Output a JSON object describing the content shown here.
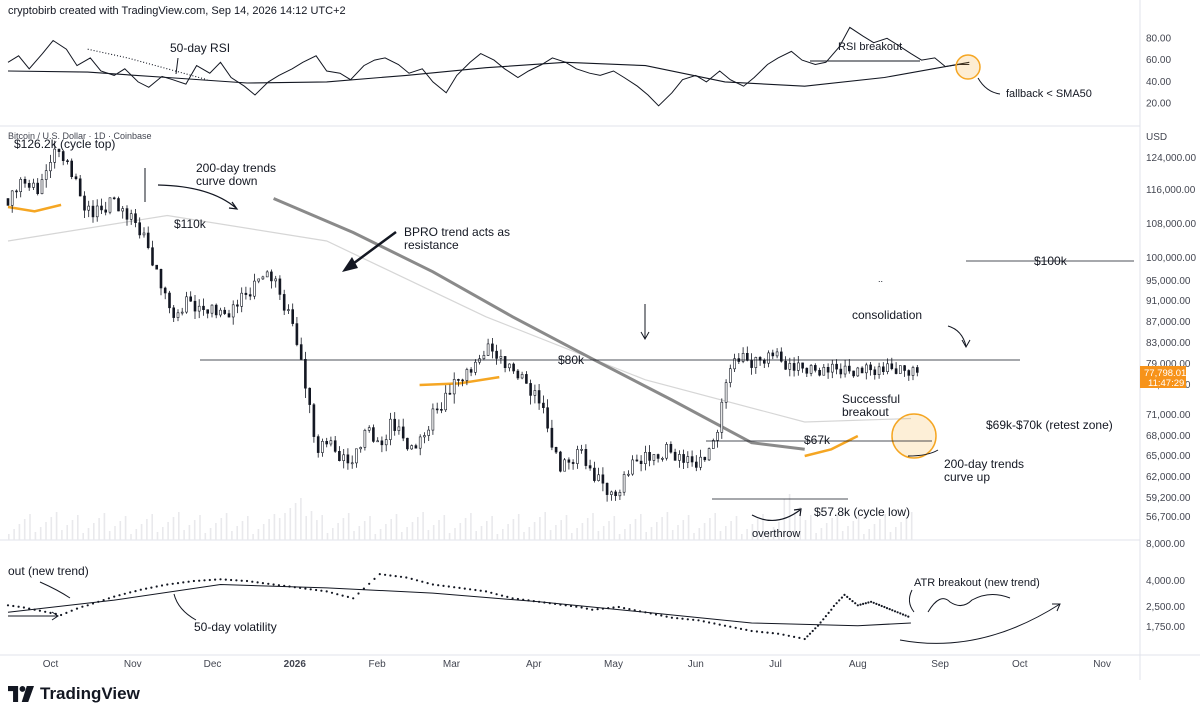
{
  "header": {
    "credit": "cryptobirb created with TradingView.com, Sep 14, 2026 14:12 UTC+2",
    "symbol": "Bitcoin / U.S. Dollar · 1D · Coinbase",
    "currency": "USD"
  },
  "brand": {
    "name": "TradingView",
    "logo_icon": "tradingview-logo-icon"
  },
  "colors": {
    "candle": "#131722",
    "orange": "#f5a623",
    "sma200": "#8a8a8a",
    "sma_light": "#d6d6d6",
    "price_badge": "#f7931a",
    "grid_line": "#e0e3eb"
  },
  "chart_data": [
    {
      "type": "line",
      "name": "rsi-panel",
      "ylim": [
        5,
        95
      ],
      "yticks": [
        "80.00",
        "60.00",
        "40.00",
        "20.00"
      ],
      "ytick_values": [
        80,
        60,
        40,
        20
      ],
      "series": [
        {
          "role": "rsi",
          "x": [
            0,
            4,
            8,
            13,
            17,
            22,
            26,
            31,
            35,
            40,
            44,
            49,
            53,
            58,
            62,
            67,
            71,
            76,
            80,
            84,
            89,
            93,
            98,
            102,
            107,
            111,
            116,
            120,
            125,
            129,
            134,
            138,
            142,
            147,
            151,
            156,
            160,
            165,
            169,
            174,
            178,
            183,
            187,
            192,
            196,
            201,
            205,
            210,
            214,
            219,
            223,
            228,
            232,
            237,
            241,
            245,
            250,
            254,
            259,
            263,
            268,
            272,
            277,
            281,
            286,
            290,
            295,
            299,
            304,
            308,
            313,
            317,
            322,
            326,
            331,
            335,
            340,
            344,
            349,
            353,
            358,
            362
          ],
          "values": [
            58,
            64,
            52,
            66,
            78,
            70,
            55,
            62,
            50,
            46,
            52,
            40,
            35,
            45,
            42,
            38,
            55,
            48,
            58,
            44,
            36,
            28,
            40,
            46,
            52,
            58,
            64,
            50,
            48,
            42,
            55,
            60,
            62,
            56,
            48,
            52,
            40,
            30,
            46,
            58,
            66,
            60,
            52,
            44,
            50,
            56,
            62,
            58,
            52,
            48,
            46,
            50,
            44,
            36,
            28,
            18,
            30,
            42,
            46,
            40,
            50,
            42,
            36,
            44,
            56,
            62,
            68,
            60,
            56,
            58,
            72,
            90,
            82,
            76,
            80,
            74,
            66,
            60,
            62,
            54,
            56,
            56
          ]
        },
        {
          "role": "sma50",
          "x": [
            0,
            30,
            60,
            90,
            120,
            150,
            180,
            210,
            240,
            270,
            300,
            330,
            362
          ],
          "values": [
            50,
            49,
            44,
            39,
            40,
            46,
            53,
            58,
            55,
            40,
            36,
            44,
            58
          ]
        },
        {
          "role": "sma-dotted",
          "x": [
            30,
            45,
            60,
            75
          ],
          "values": [
            70,
            62,
            52,
            42
          ]
        }
      ],
      "annotations": [
        "50-day RSI",
        "RSI breakout",
        "fallback < SMA50"
      ]
    },
    {
      "type": "candlestick",
      "name": "price-panel",
      "ylim": [
        54000,
        132000
      ],
      "yticks": [
        "124,000.00",
        "116,000.00",
        "108,000.00",
        "100,000.00",
        "95,000.00",
        "91,000.00",
        "87,000.00",
        "83,000.00",
        "79,000.00",
        "75,000.00",
        "71,000.00",
        "68,000.00",
        "65,000.00",
        "62,000.00",
        "59,200.00",
        "56,700.00"
      ],
      "ytick_values": [
        124000,
        116000,
        108000,
        100000,
        95000,
        91000,
        87000,
        83000,
        79000,
        75000,
        71000,
        68000,
        65000,
        62000,
        59200,
        56700
      ],
      "x_start": "2025-09-15",
      "x_end": "2026-11-14",
      "xticks": [
        "Oct",
        "Nov",
        "Dec",
        "2026",
        "Feb",
        "Mar",
        "Apr",
        "May",
        "Jun",
        "Jul",
        "Aug",
        "Sep",
        "Oct",
        "Nov"
      ],
      "xtick_dates": [
        "2025-10-01",
        "2025-11-01",
        "2025-12-01",
        "2026-01-01",
        "2026-02-01",
        "2026-03-01",
        "2026-04-01",
        "2026-05-01",
        "2026-06-01",
        "2026-07-01",
        "2026-08-01",
        "2026-09-01",
        "2026-10-01",
        "2026-11-01"
      ],
      "close_path": {
        "x": [
          0,
          4,
          8,
          12,
          16,
          20,
          24,
          28,
          32,
          36,
          40,
          44,
          48,
          52,
          56,
          60,
          64,
          68,
          72,
          76,
          80,
          84,
          88,
          92,
          96,
          100,
          104,
          108,
          112,
          116,
          120,
          124,
          128,
          132,
          136,
          140,
          144,
          148,
          152,
          156,
          160,
          164,
          168,
          172,
          176,
          180,
          184,
          188,
          192,
          196,
          200,
          204,
          208,
          212,
          216,
          220,
          224,
          228,
          232,
          236,
          240,
          244,
          248,
          252,
          256,
          260,
          264,
          268,
          272,
          276,
          280,
          284,
          288,
          292,
          296,
          300,
          304,
          308,
          312,
          316,
          320,
          324,
          328,
          332,
          336,
          340,
          344,
          348,
          352,
          356,
          360,
          364
        ],
        "values": [
          114000,
          117000,
          118000,
          115000,
          124000,
          126200,
          120000,
          113000,
          110000,
          111000,
          114000,
          110000,
          108000,
          104000,
          97000,
          90000,
          88000,
          91000,
          89000,
          90000,
          88000,
          89000,
          91000,
          93000,
          97000,
          95000,
          90000,
          86000,
          75000,
          66000,
          67000,
          65000,
          64000,
          66000,
          69000,
          66000,
          70000,
          68000,
          66000,
          67000,
          71000,
          73000,
          75000,
          77000,
          78000,
          82000,
          81000,
          78000,
          77000,
          75000,
          73000,
          68000,
          63000,
          64000,
          66000,
          62000,
          61000,
          59000,
          62000,
          64000,
          65000,
          64000,
          66000,
          65000,
          64000,
          64000,
          65000,
          70000,
          79000,
          80000,
          79000,
          80000,
          81000,
          79000,
          78000,
          77798,
          77798,
          77798,
          77798,
          77798,
          77798,
          77798,
          77798,
          77798,
          77798,
          77798,
          77798,
          77798,
          77798,
          77798,
          77798,
          77798
        ]
      },
      "sma200": {
        "x": [
          100,
          130,
          160,
          190,
          220,
          250,
          280,
          300
        ],
        "values": [
          114000,
          106000,
          97000,
          88000,
          80000,
          73000,
          67000,
          66000
        ]
      },
      "sma_light": {
        "x": [
          0,
          60,
          120,
          180,
          240,
          300,
          340
        ],
        "values": [
          104000,
          110000,
          104000,
          88000,
          76000,
          70000,
          70500
        ]
      },
      "orange_segments": [
        {
          "x": [
            0,
            10,
            20
          ],
          "values": [
            112000,
            111000,
            112500
          ]
        },
        {
          "x": [
            155,
            170,
            185
          ],
          "values": [
            75000,
            75300,
            76500
          ]
        },
        {
          "x": [
            300,
            310,
            320
          ],
          "values": [
            65000,
            66000,
            68000
          ]
        }
      ],
      "annotations": [
        "$126.2k (cycle top)",
        "200-day trends curve down",
        "$110k",
        "BPRO trend acts as resistance",
        "$100k",
        "$80k",
        "consolidation",
        "Successful breakout",
        "$67k",
        "$69k-$70k (retest zone)",
        "200-day trends curve up",
        "$57.8k (cycle low)",
        "overthrow"
      ],
      "last_price": "77,798.01",
      "last_time": "11:47:29",
      "volume_scale_label": "8,000.00"
    },
    {
      "type": "scatter",
      "name": "volatility-panel",
      "ylim": [
        1300,
        5000
      ],
      "yticks": [
        "4,000.00",
        "2,500.00",
        "1,750.00"
      ],
      "ytick_values": [
        4000,
        2500,
        1750
      ],
      "series": [
        {
          "role": "volatility-dots",
          "x": [
            0,
            10,
            20,
            30,
            40,
            50,
            60,
            70,
            80,
            90,
            100,
            110,
            120,
            130,
            140,
            150,
            160,
            170,
            180,
            190,
            200,
            210,
            220,
            230,
            240,
            250,
            260,
            270,
            280,
            290,
            300,
            305,
            310,
            315,
            320,
            325,
            330,
            335,
            340
          ],
          "values": [
            2600,
            2400,
            2200,
            2600,
            3100,
            3500,
            3800,
            4000,
            4100,
            4000,
            3800,
            3600,
            3400,
            3000,
            4400,
            4200,
            3800,
            3600,
            3400,
            3000,
            2800,
            2600,
            2400,
            2500,
            2300,
            2100,
            2000,
            1800,
            1600,
            1500,
            1300,
            1800,
            2400,
            3200,
            2600,
            2800,
            2500,
            2300,
            2100
          ]
        },
        {
          "role": "sma50",
          "x": [
            0,
            40,
            80,
            120,
            160,
            200,
            240,
            280,
            320,
            340
          ],
          "values": [
            2300,
            2900,
            3800,
            3600,
            3300,
            2800,
            2300,
            1900,
            1800,
            1900
          ]
        }
      ],
      "annotations": [
        "out (new trend)",
        "50-day volatility",
        "ATR breakout (new trend)"
      ]
    }
  ]
}
